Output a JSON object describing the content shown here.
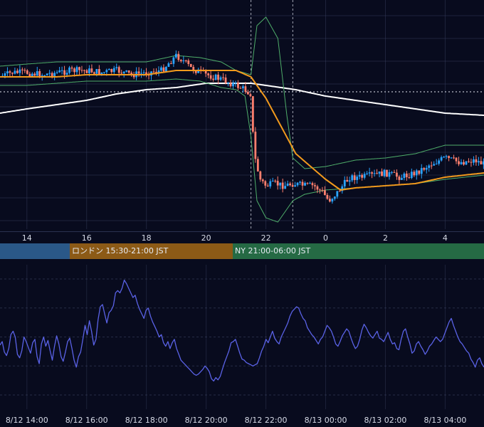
{
  "colors": {
    "background": "#080b1e",
    "grid": "#3a4262",
    "candle_up": "#29a3ff",
    "candle_down": "#ff7f6e",
    "bollinger": "#4fae6a",
    "sma_orange": "#f29a1d",
    "sma_white": "#ffffff",
    "oscillator": "#5a62e6",
    "session_tokyo": "#2a5888",
    "session_london": "#8c5a16",
    "session_ny": "#256a44"
  },
  "sessions": {
    "london": "ロンドン 15:30-21:00 JST",
    "ny": "NY 21:00-06:00 JST"
  },
  "chart_data": [
    {
      "type": "candlestick",
      "x_ticks": [
        "14",
        "16",
        "18",
        "20",
        "22",
        "0",
        "2",
        "4"
      ],
      "x_range_hours": [
        13.1,
        29.3
      ],
      "y_range": [
        0,
        100
      ],
      "grid": true,
      "session_markers_hours": [
        21.5,
        22.9
      ],
      "reference_level": 39,
      "series": [
        {
          "kind": "close",
          "x": [
            13.1,
            13.5,
            14.0,
            14.5,
            15.0,
            15.5,
            16.0,
            16.5,
            17.0,
            17.5,
            18.0,
            18.5,
            19.0,
            19.2,
            19.5,
            20.0,
            20.5,
            21.0,
            21.3,
            21.5,
            21.6,
            21.8,
            22.0,
            22.3,
            22.6,
            22.9,
            23.3,
            23.6,
            23.9,
            24.1,
            24.4,
            24.8,
            25.2,
            25.6,
            26.0,
            26.5,
            27.0,
            27.5,
            28.0,
            28.5,
            29.0,
            29.3
          ],
          "values": [
            32,
            30,
            30,
            31,
            30,
            29,
            29,
            30,
            29,
            31,
            30,
            29,
            22,
            24,
            28,
            31,
            33,
            36,
            38,
            40,
            68,
            80,
            83,
            82,
            83,
            82,
            83,
            83,
            86,
            90,
            86,
            79,
            79,
            78,
            77,
            79,
            77,
            73,
            70,
            72,
            71,
            73
          ]
        },
        {
          "name": "",
          "kind": "bollinger_upper",
          "x": [
            13.1,
            14.0,
            15.0,
            16.0,
            17.0,
            18.0,
            19.0,
            19.8,
            20.5,
            21.0,
            21.5,
            21.7,
            22.0,
            22.4,
            22.7,
            22.9,
            23.3,
            24.0,
            25.0,
            26.0,
            27.0,
            28.0,
            29.3
          ],
          "values": [
            27,
            26,
            25,
            25,
            25,
            25,
            22,
            23,
            25,
            29,
            31,
            8,
            4,
            14,
            50,
            70,
            75,
            74,
            71,
            70,
            68,
            64,
            64
          ]
        },
        {
          "name": "",
          "kind": "bollinger_lower",
          "x": [
            13.1,
            14.0,
            15.0,
            16.0,
            17.0,
            18.0,
            19.0,
            19.8,
            20.5,
            21.0,
            21.3,
            21.5,
            21.7,
            22.0,
            22.4,
            22.7,
            22.9,
            23.3,
            24.0,
            25.0,
            26.0,
            27.0,
            28.0,
            29.3
          ],
          "values": [
            36,
            36,
            35,
            34,
            34,
            34,
            33,
            34,
            37,
            38,
            41,
            60,
            90,
            98,
            100,
            94,
            90,
            87,
            85,
            84,
            83,
            82,
            80,
            78
          ]
        },
        {
          "name": "",
          "kind": "sma_short",
          "x": [
            13.1,
            14.0,
            15.0,
            16.0,
            17.0,
            18.0,
            19.0,
            20.0,
            21.0,
            21.5,
            22.0,
            22.5,
            23.0,
            23.5,
            24.0,
            24.5,
            25.0,
            26.0,
            27.0,
            28.0,
            29.3
          ],
          "values": [
            32,
            32,
            32,
            31,
            31,
            31,
            29,
            29,
            29,
            32,
            42,
            55,
            68,
            74,
            80,
            85,
            84,
            83,
            82,
            79,
            77
          ]
        },
        {
          "name": "",
          "kind": "sma_long",
          "x": [
            13.1,
            14.0,
            15.0,
            16.0,
            17.0,
            18.0,
            19.0,
            20.0,
            21.0,
            21.5,
            22.0,
            23.0,
            24.0,
            25.0,
            26.0,
            27.0,
            28.0,
            29.3
          ],
          "values": [
            49,
            47,
            45,
            43,
            40,
            38,
            37,
            35,
            35,
            35,
            36,
            38,
            41,
            43,
            45,
            47,
            49,
            50
          ]
        }
      ]
    },
    {
      "type": "line",
      "name": "",
      "x_ticks": [
        "8/12 14:00",
        "8/12 16:00",
        "8/12 18:00",
        "8/12 20:00",
        "8/12 22:00",
        "8/13 00:00",
        "8/13 02:00",
        "8/13 04:00"
      ],
      "x_range_hours": [
        13.1,
        29.3
      ],
      "y_range": [
        0,
        100
      ],
      "grid": true,
      "values": [
        43,
        46,
        37,
        34,
        40,
        52,
        55,
        50,
        35,
        32,
        38,
        50,
        46,
        41,
        36,
        45,
        48,
        33,
        27,
        44,
        50,
        42,
        47,
        38,
        30,
        42,
        51,
        44,
        33,
        29,
        37,
        46,
        49,
        40,
        30,
        24,
        33,
        37,
        48,
        60,
        52,
        64,
        55,
        43,
        48,
        65,
        76,
        78,
        70,
        62,
        71,
        73,
        77,
        88,
        90,
        88,
        92,
        99,
        96,
        92,
        88,
        84,
        86,
        79,
        74,
        70,
        66,
        73,
        75,
        68,
        63,
        59,
        55,
        50,
        52,
        45,
        42,
        46,
        40,
        45,
        48,
        40,
        35,
        30,
        28,
        26,
        24,
        22,
        20,
        18,
        17,
        18,
        20,
        22,
        25,
        23,
        20,
        14,
        12,
        15,
        13,
        16,
        22,
        28,
        33,
        38,
        45,
        46,
        48,
        42,
        36,
        31,
        30,
        28,
        27,
        26,
        25,
        26,
        27,
        32,
        38,
        42,
        48,
        45,
        50,
        55,
        49,
        46,
        44,
        50,
        54,
        58,
        62,
        68,
        72,
        74,
        76,
        75,
        70,
        66,
        64,
        58,
        55,
        52,
        50,
        47,
        44,
        48,
        50,
        55,
        60,
        58,
        55,
        50,
        44,
        42,
        46,
        51,
        54,
        57,
        55,
        49,
        44,
        40,
        42,
        48,
        56,
        61,
        58,
        54,
        51,
        49,
        52,
        55,
        49,
        48,
        46,
        50,
        54,
        48,
        44,
        45,
        40,
        39,
        48,
        55,
        57,
        50,
        44,
        36,
        38,
        44,
        46,
        42,
        39,
        35,
        38,
        42,
        44,
        47,
        50,
        48,
        46,
        48,
        53,
        58,
        63,
        66,
        60,
        55,
        50,
        46,
        44,
        41,
        38,
        36,
        31,
        28,
        24,
        30,
        32,
        27,
        24
      ]
    }
  ]
}
